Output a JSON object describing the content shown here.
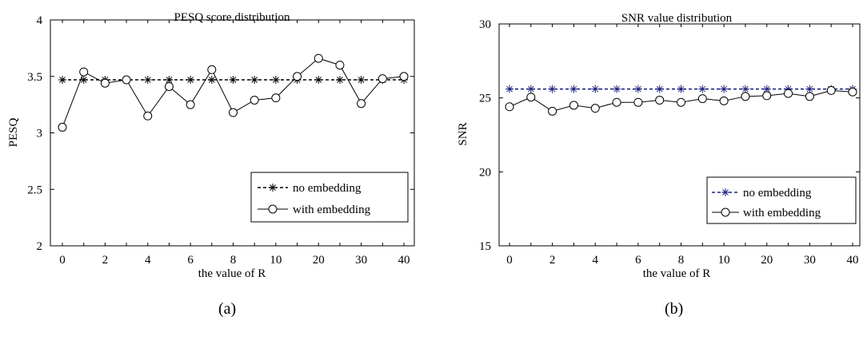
{
  "colors": {
    "axis": "#000000",
    "no_embedding_a": "#000000",
    "no_embedding_b": "#1a237e",
    "with_embedding": "#000000"
  },
  "chart_data": [
    {
      "id": "a",
      "type": "line",
      "title": "PESQ score distribution",
      "caption": "(a)",
      "xlabel": "the value of R",
      "ylabel": "PESQ",
      "categories": [
        "0",
        "1",
        "2",
        "3",
        "4",
        "5",
        "6",
        "7",
        "8",
        "9",
        "10",
        "15",
        "20",
        "25",
        "30",
        "35",
        "40"
      ],
      "xtick_labels": [
        "0",
        "2",
        "4",
        "6",
        "8",
        "10",
        "20",
        "30",
        "40"
      ],
      "xtick_index": [
        0,
        2,
        4,
        6,
        8,
        10,
        12,
        14,
        16
      ],
      "ylim": [
        2,
        4
      ],
      "yticks": [
        2,
        2.5,
        3,
        3.5,
        4
      ],
      "ytick_labels": [
        "2",
        "2.5",
        "3",
        "3.5",
        "4"
      ],
      "legend_position": "right",
      "grid": false,
      "series": [
        {
          "name": "no embedding",
          "marker": "star",
          "dash": true,
          "values": [
            3.47,
            3.47,
            3.47,
            3.47,
            3.47,
            3.47,
            3.47,
            3.47,
            3.47,
            3.47,
            3.47,
            3.47,
            3.47,
            3.47,
            3.47,
            3.47,
            3.47
          ]
        },
        {
          "name": "with embedding",
          "marker": "circle",
          "dash": false,
          "values": [
            3.05,
            3.54,
            3.44,
            3.47,
            3.15,
            3.41,
            3.25,
            3.56,
            3.18,
            3.29,
            3.31,
            3.5,
            3.66,
            3.6,
            3.26,
            3.48,
            3.5
          ]
        }
      ]
    },
    {
      "id": "b",
      "type": "line",
      "title": "SNR value distribution",
      "caption": "(b)",
      "xlabel": "the value of R",
      "ylabel": "SNR",
      "categories": [
        "0",
        "1",
        "2",
        "3",
        "4",
        "5",
        "6",
        "7",
        "8",
        "9",
        "10",
        "15",
        "20",
        "25",
        "30",
        "35",
        "40"
      ],
      "xtick_labels": [
        "0",
        "2",
        "4",
        "6",
        "8",
        "10",
        "20",
        "30",
        "40"
      ],
      "xtick_index": [
        0,
        2,
        4,
        6,
        8,
        10,
        12,
        14,
        16
      ],
      "ylim": [
        15,
        30
      ],
      "yticks": [
        15,
        20,
        25,
        30
      ],
      "ytick_labels": [
        "15",
        "20",
        "25",
        "30"
      ],
      "legend_position": "bottom-right",
      "grid": false,
      "series": [
        {
          "name": "no embedding",
          "marker": "star",
          "dash": true,
          "values": [
            25.6,
            25.6,
            25.6,
            25.6,
            25.6,
            25.6,
            25.6,
            25.6,
            25.6,
            25.6,
            25.6,
            25.6,
            25.6,
            25.6,
            25.6,
            25.6,
            25.6
          ]
        },
        {
          "name": "with embedding",
          "marker": "circle",
          "dash": false,
          "values": [
            24.4,
            25.05,
            24.1,
            24.5,
            24.3,
            24.7,
            24.7,
            24.85,
            24.7,
            24.95,
            24.8,
            25.1,
            25.15,
            25.3,
            25.1,
            25.5,
            25.4
          ]
        }
      ]
    }
  ]
}
